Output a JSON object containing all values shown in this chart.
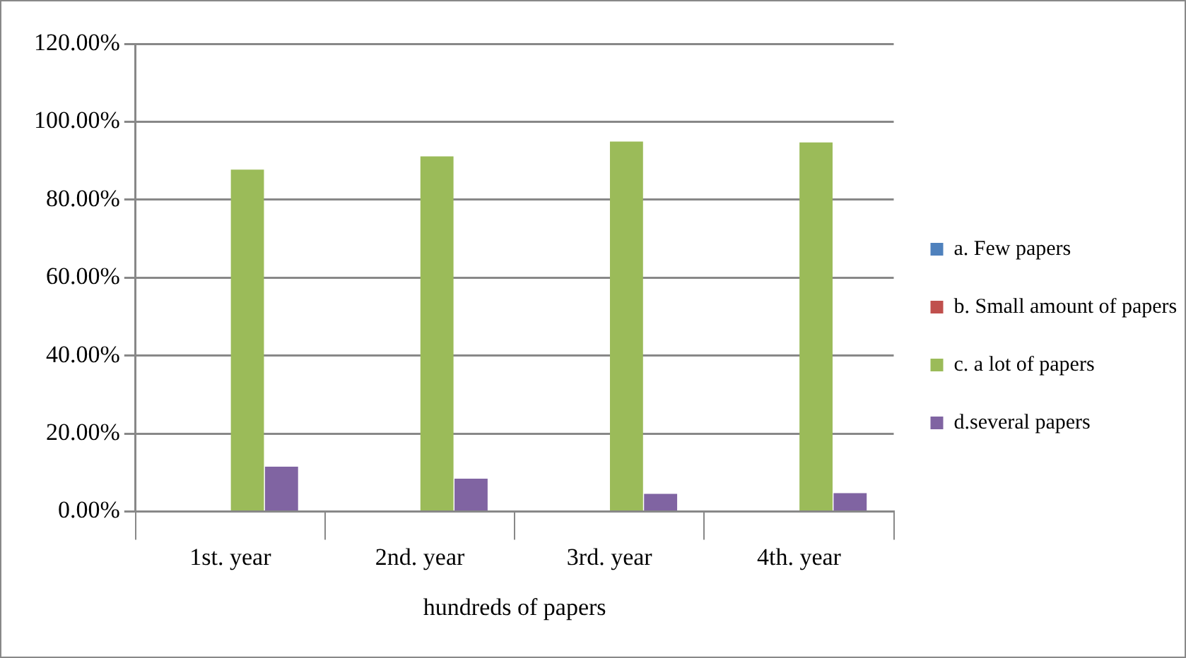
{
  "chart_data": {
    "type": "bar",
    "xlabel": "hundreds of papers",
    "categories": [
      "1st. year",
      "2nd. year",
      "3rd. year",
      "4th. year"
    ],
    "series": [
      {
        "name": "a. Few papers",
        "color": "#4f81bd",
        "values": [
          0,
          0,
          0,
          0
        ]
      },
      {
        "name": "b. Small amount of papers",
        "color": "#c0504d",
        "values": [
          0,
          0,
          0,
          0
        ]
      },
      {
        "name": "c. a lot of papers",
        "color": "#9bbb59",
        "values": [
          87.7,
          91.1,
          94.9,
          94.7
        ]
      },
      {
        "name": "d.several papers",
        "color": "#8064a2",
        "values": [
          11.5,
          8.4,
          4.5,
          4.7
        ]
      }
    ],
    "ylim": [
      0,
      120
    ],
    "yticks": [
      {
        "value": 0,
        "label": "0.00%"
      },
      {
        "value": 20,
        "label": "20.00%"
      },
      {
        "value": 40,
        "label": "40.00%"
      },
      {
        "value": 60,
        "label": "60.00%"
      },
      {
        "value": 80,
        "label": "80.00%"
      },
      {
        "value": 100,
        "label": "100.00%"
      },
      {
        "value": 120,
        "label": "120.00%"
      }
    ],
    "grid": "y",
    "legend": "right"
  }
}
